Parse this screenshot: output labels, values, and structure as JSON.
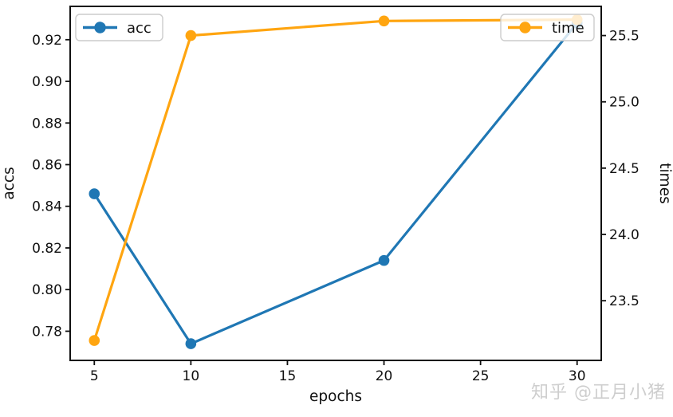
{
  "watermark": {
    "text": "知乎 @正月小猪",
    "color": "#c6c6c6"
  },
  "chart_data": {
    "type": "line",
    "title": "",
    "xlabel": "epochs",
    "ylabel_left": "accs",
    "ylabel_right": "times",
    "x": [
      5,
      10,
      20,
      30
    ],
    "series": [
      {
        "name": "acc",
        "axis": "left",
        "color": "#1f77b4",
        "marker": "circle",
        "values": [
          0.846,
          0.774,
          0.814,
          0.928
        ]
      },
      {
        "name": "time",
        "axis": "right",
        "color": "#ffa510",
        "marker": "circle",
        "values": [
          23.2,
          25.5,
          25.61,
          25.62
        ]
      }
    ],
    "xlim": [
      3.75,
      31.25
    ],
    "xticks": [
      5,
      10,
      15,
      20,
      25,
      30
    ],
    "ylim_left": [
      0.766,
      0.936
    ],
    "yticks_left": [
      0.78,
      0.8,
      0.82,
      0.84,
      0.86,
      0.9,
      0.92
    ],
    "yticks_left_all": [
      0.78,
      0.8,
      0.82,
      0.84,
      0.86,
      0.88,
      0.9,
      0.92
    ],
    "ylim_right": [
      23.05,
      25.72
    ],
    "yticks_right": [
      23.5,
      24.0,
      24.5,
      25.0,
      25.5
    ],
    "grid": false,
    "legend_entries": [
      {
        "label": "acc",
        "series": "acc",
        "position": "upper-left"
      },
      {
        "label": "time",
        "series": "time",
        "position": "upper-right"
      }
    ]
  }
}
